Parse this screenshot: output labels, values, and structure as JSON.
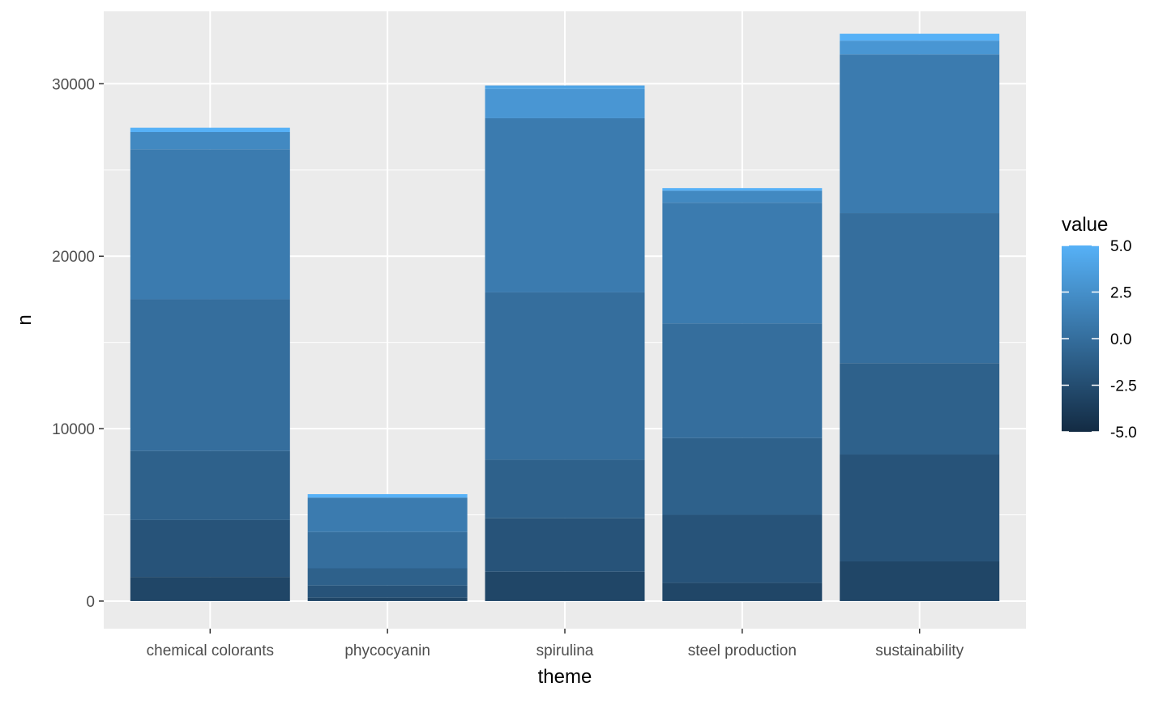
{
  "chart_data": {
    "type": "bar",
    "stacked": true,
    "xlabel": "theme",
    "ylabel": "n",
    "categories": [
      "chemical colorants",
      "phycocyanin",
      "spirulina",
      "steel production",
      "sustainability"
    ],
    "ylim": [
      -1600,
      34200
    ],
    "yticks": [
      0,
      10000,
      20000,
      30000
    ],
    "ytick_labels": [
      "0",
      "10000",
      "20000",
      "30000"
    ],
    "grid": true,
    "background": "#EBEBEB",
    "grid_color": "#FFFFFF",
    "legend": {
      "title": "value",
      "position": "right",
      "type": "continuous-colorbar",
      "range": [
        -5,
        5
      ],
      "breaks": [
        5,
        2.5,
        0,
        -2.5,
        -5
      ],
      "break_labels": [
        "5.0",
        "2.5",
        "0.0",
        "-2.5",
        "-5.0"
      ],
      "low_color": "#132B43",
      "high_color": "#56B1F7"
    },
    "stack_order_note_values": [
      -5,
      -4,
      -3,
      -2,
      -1,
      0,
      1,
      2,
      3,
      4,
      5
    ],
    "series": [
      {
        "value": -5,
        "values": [
          0,
          0,
          0,
          0,
          0
        ]
      },
      {
        "value": -4,
        "values": [
          0,
          0,
          0,
          0,
          0
        ]
      },
      {
        "value": -3,
        "values": [
          1400,
          200,
          1700,
          1050,
          2300
        ]
      },
      {
        "value": -2,
        "values": [
          3300,
          700,
          3100,
          3950,
          6200
        ]
      },
      {
        "value": -1,
        "values": [
          4000,
          1000,
          3400,
          4450,
          5300
        ]
      },
      {
        "value": 0,
        "values": [
          8800,
          2100,
          9700,
          6650,
          8700
        ]
      },
      {
        "value": 1,
        "values": [
          8700,
          2000,
          10100,
          7000,
          9200
        ]
      },
      {
        "value": 2,
        "values": [
          1000,
          0,
          0,
          700,
          0
        ]
      },
      {
        "value": 3,
        "values": [
          0,
          0,
          1700,
          0,
          800
        ]
      },
      {
        "value": 4,
        "values": [
          0,
          0,
          200,
          0,
          0
        ]
      },
      {
        "value": 5,
        "values": [
          250,
          200,
          0,
          150,
          400
        ]
      }
    ]
  }
}
